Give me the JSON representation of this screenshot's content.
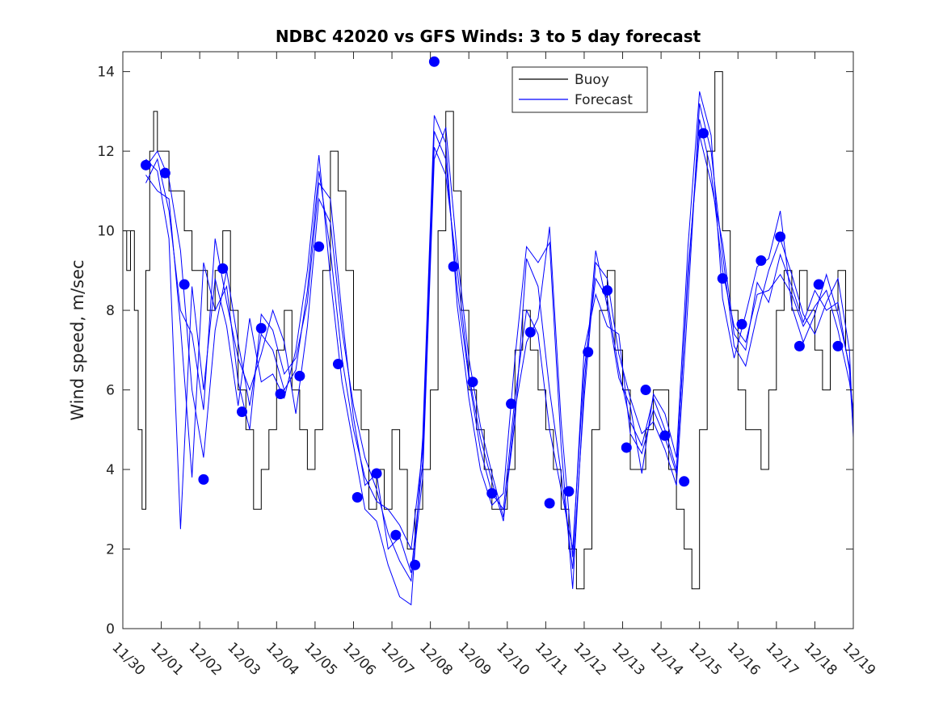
{
  "chart_data": {
    "type": "line",
    "title": "NDBC 42020 vs GFS Winds: 3 to 5 day forecast",
    "xlabel": "",
    "ylabel": "Wind speed, m/sec",
    "xlim": [
      0,
      19
    ],
    "ylim": [
      0,
      14.5
    ],
    "x_tick_labels": [
      "11/30",
      "12/01",
      "12/02",
      "12/03",
      "12/04",
      "12/05",
      "12/06",
      "12/07",
      "12/08",
      "12/09",
      "12/10",
      "12/11",
      "12/12",
      "12/13",
      "12/14",
      "12/15",
      "12/16",
      "12/17",
      "12/18",
      "12/19"
    ],
    "y_ticks": [
      0,
      2,
      4,
      6,
      8,
      10,
      12,
      14
    ],
    "legend": {
      "location": "top-right",
      "entries": [
        {
          "label": "Buoy",
          "color": "#000000"
        },
        {
          "label": "Forecast",
          "color": "#0000ff"
        }
      ]
    },
    "buoy_color": "#000000",
    "forecast_color": "#0000ff",
    "marker_color": "#0000ff",
    "buoy": {
      "name": "Buoy",
      "x": [
        0.0,
        0.1,
        0.2,
        0.3,
        0.4,
        0.5,
        0.6,
        0.7,
        0.8,
        0.9,
        1.0,
        1.2,
        1.4,
        1.6,
        1.8,
        2.0,
        2.2,
        2.4,
        2.6,
        2.8,
        3.0,
        3.2,
        3.4,
        3.6,
        3.8,
        4.0,
        4.2,
        4.4,
        4.6,
        4.8,
        5.0,
        5.2,
        5.4,
        5.6,
        5.8,
        6.0,
        6.2,
        6.4,
        6.6,
        6.8,
        7.0,
        7.2,
        7.4,
        7.6,
        7.8,
        8.0,
        8.2,
        8.4,
        8.6,
        8.8,
        9.0,
        9.2,
        9.4,
        9.6,
        9.8,
        10.0,
        10.2,
        10.4,
        10.6,
        10.8,
        11.0,
        11.2,
        11.4,
        11.6,
        11.8,
        12.0,
        12.2,
        12.4,
        12.6,
        12.8,
        13.0,
        13.2,
        13.4,
        13.6,
        13.8,
        14.0,
        14.2,
        14.4,
        14.6,
        14.8,
        15.0,
        15.2,
        15.4,
        15.6,
        15.8,
        16.0,
        16.2,
        16.4,
        16.6,
        16.8,
        17.0,
        17.2,
        17.4,
        17.6,
        17.8,
        18.0,
        18.2,
        18.4,
        18.6,
        18.8,
        19.0
      ],
      "values": [
        10,
        9,
        10,
        8,
        5,
        3,
        9,
        12,
        13,
        12,
        12,
        11,
        11,
        10,
        9,
        9,
        8,
        9,
        10,
        8,
        6,
        5,
        3,
        4,
        5,
        7,
        8,
        6,
        5,
        4,
        5,
        9,
        12,
        11,
        9,
        6,
        5,
        3,
        4,
        3,
        5,
        4,
        2,
        3,
        4,
        6,
        10,
        13,
        11,
        8,
        6,
        5,
        4,
        3,
        3,
        4,
        7,
        8,
        7,
        6,
        5,
        4,
        3,
        2,
        1,
        2,
        5,
        8,
        9,
        7,
        6,
        4,
        4,
        5,
        6,
        6,
        4,
        3,
        2,
        1,
        5,
        12,
        14,
        10,
        8,
        6,
        5,
        5,
        4,
        6,
        8,
        9,
        8,
        9,
        8,
        7,
        6,
        8,
        9,
        7,
        5
      ]
    },
    "forecast_markers": {
      "name": "Forecast",
      "x": [
        0.6,
        1.1,
        1.6,
        2.1,
        2.6,
        3.1,
        3.6,
        4.1,
        4.6,
        5.1,
        5.6,
        6.1,
        6.6,
        7.1,
        7.6,
        8.1,
        8.6,
        9.1,
        9.6,
        10.1,
        10.6,
        11.1,
        11.6,
        12.1,
        12.6,
        13.1,
        13.6,
        14.1,
        14.6,
        15.1,
        15.6,
        16.1,
        16.6,
        17.1,
        17.6,
        18.1,
        18.6
      ],
      "values": [
        11.65,
        11.45,
        8.65,
        3.75,
        9.05,
        5.45,
        7.55,
        5.9,
        6.35,
        9.6,
        6.65,
        3.3,
        3.9,
        2.35,
        1.6,
        14.25,
        9.1,
        6.2,
        3.4,
        5.65,
        7.45,
        3.15,
        3.45,
        6.95,
        8.5,
        4.55,
        6.0,
        4.85,
        3.7,
        12.45,
        8.8,
        7.65,
        9.25,
        9.85,
        7.1,
        8.65,
        7.1
      ]
    },
    "forecast_series": [
      {
        "name": "Forecast",
        "x": [
          0.6,
          0.9,
          1.2,
          1.5,
          1.8,
          2.1,
          2.4,
          2.7,
          3.0,
          3.3,
          3.6,
          3.9,
          4.2,
          4.5,
          4.8,
          5.1,
          5.4,
          5.7,
          6.0,
          6.3,
          6.6,
          6.9,
          7.2,
          7.5,
          7.8,
          8.1,
          8.4,
          8.7,
          9.0,
          9.3,
          9.6,
          9.9,
          10.2,
          10.5,
          10.8,
          11.1,
          11.4,
          11.7,
          12.0,
          12.3,
          12.6,
          12.9,
          13.2,
          13.5,
          13.8,
          14.1,
          14.4,
          14.7,
          15.0,
          15.3,
          15.6,
          15.9,
          16.2,
          16.5,
          16.8,
          17.1,
          17.4,
          17.7,
          18.0,
          18.3,
          18.6,
          18.9,
          19.0
        ],
        "values": [
          11.6,
          12.0,
          11.3,
          9.5,
          6.0,
          4.3,
          7.5,
          9.0,
          7.2,
          5.6,
          7.4,
          7.0,
          6.0,
          6.5,
          8.5,
          11.5,
          9.5,
          6.8,
          5.0,
          3.8,
          3.2,
          3.0,
          2.6,
          2.0,
          4.5,
          12.5,
          11.8,
          8.5,
          6.3,
          4.5,
          3.4,
          3.0,
          5.8,
          8.0,
          7.4,
          5.0,
          3.5,
          2.0,
          6.5,
          8.8,
          8.3,
          6.5,
          5.2,
          4.6,
          5.8,
          5.0,
          4.0,
          8.8,
          12.8,
          11.5,
          9.0,
          7.6,
          7.2,
          8.4,
          8.5,
          8.9,
          8.4,
          7.6,
          8.1,
          8.5,
          7.5,
          6.2,
          5.5
        ]
      },
      {
        "name": "Forecast",
        "x": [
          0.6,
          0.9,
          1.2,
          1.5,
          1.8,
          2.1,
          2.4,
          2.7,
          3.0,
          3.3,
          3.6,
          3.9,
          4.2,
          4.5,
          4.8,
          5.1,
          5.4,
          5.7,
          6.0,
          6.3,
          6.6,
          6.9,
          7.2,
          7.5,
          7.8,
          8.1,
          8.4,
          8.7,
          9.0,
          9.3,
          9.6,
          9.9,
          10.2,
          10.5,
          10.8,
          11.1,
          11.4,
          11.7,
          12.0,
          12.3,
          12.6,
          12.9,
          13.2,
          13.5,
          13.8,
          14.1,
          14.4,
          14.7,
          15.0,
          15.3,
          15.6,
          15.9,
          16.2,
          16.5,
          16.8,
          17.1,
          17.4,
          17.7,
          18.0,
          18.3,
          18.6,
          18.9,
          19.0
        ],
        "values": [
          11.2,
          11.8,
          10.5,
          8.0,
          7.4,
          5.5,
          9.8,
          8.2,
          6.8,
          6.0,
          6.9,
          8.0,
          7.2,
          5.4,
          7.6,
          10.8,
          10.2,
          7.5,
          5.6,
          4.3,
          3.5,
          2.4,
          1.7,
          1.2,
          3.8,
          11.8,
          12.6,
          9.4,
          6.8,
          5.1,
          3.9,
          2.8,
          5.2,
          9.3,
          8.6,
          6.0,
          3.9,
          1.5,
          5.8,
          9.2,
          8.8,
          6.9,
          5.8,
          4.9,
          5.2,
          4.5,
          3.6,
          8.2,
          13.2,
          12.0,
          9.4,
          7.1,
          6.6,
          7.9,
          9.0,
          9.8,
          8.9,
          7.9,
          7.4,
          8.2,
          8.8,
          7.0,
          4.8
        ]
      },
      {
        "name": "Forecast",
        "x": [
          0.6,
          0.9,
          1.2,
          1.5,
          1.8,
          2.1,
          2.4,
          2.7,
          3.0,
          3.3,
          3.6,
          3.9,
          4.2,
          4.5,
          4.8,
          5.1,
          5.4,
          5.7,
          6.0,
          6.3,
          6.6,
          6.9,
          7.2,
          7.5,
          7.8,
          8.1,
          8.4,
          8.7,
          9.0,
          9.3,
          9.6,
          9.9,
          10.2,
          10.5,
          10.8,
          11.1,
          11.4,
          11.7,
          12.0,
          12.3,
          12.6,
          12.9,
          13.2,
          13.5,
          13.8,
          14.1,
          14.4,
          14.7,
          15.0,
          15.3,
          15.6,
          15.9,
          16.2,
          16.5,
          16.8,
          17.1,
          17.4,
          17.7,
          18.0,
          18.3,
          18.6,
          18.9,
          19.0
        ],
        "values": [
          11.8,
          11.5,
          9.8,
          2.5,
          8.6,
          6.0,
          8.8,
          7.6,
          5.6,
          7.8,
          6.2,
          6.4,
          5.8,
          7.0,
          9.0,
          11.9,
          8.8,
          6.2,
          4.6,
          3.0,
          2.7,
          1.6,
          0.8,
          0.6,
          4.8,
          12.9,
          12.2,
          8.1,
          5.8,
          4.0,
          3.1,
          3.4,
          6.8,
          9.6,
          9.2,
          9.7,
          4.6,
          1.0,
          6.1,
          9.5,
          8.1,
          6.3,
          5.6,
          3.9,
          5.9,
          5.4,
          4.3,
          9.6,
          13.5,
          12.4,
          8.3,
          6.8,
          7.9,
          9.1,
          9.3,
          10.5,
          8.1,
          7.2,
          7.9,
          8.9,
          7.9,
          6.6,
          5.2
        ]
      },
      {
        "name": "Forecast",
        "x": [
          0.6,
          0.9,
          1.2,
          1.5,
          1.8,
          2.1,
          2.4,
          2.7,
          3.0,
          3.3,
          3.6,
          3.9,
          4.2,
          4.5,
          4.8,
          5.1,
          5.4,
          5.7,
          6.0,
          6.3,
          6.6,
          6.9,
          7.2,
          7.5,
          7.8,
          8.1,
          8.4,
          8.7,
          9.0,
          9.3,
          9.6,
          9.9,
          10.2,
          10.5,
          10.8,
          11.1,
          11.4,
          11.7,
          12.0,
          12.3,
          12.6,
          12.9,
          13.2,
          13.5,
          13.8,
          14.1,
          14.4,
          14.7,
          15.0,
          15.3,
          15.6,
          15.9,
          16.2,
          16.5,
          16.8,
          17.1,
          17.4,
          17.7,
          18.0,
          18.3,
          18.6,
          18.9,
          19.0
        ],
        "values": [
          11.4,
          11.0,
          10.8,
          7.6,
          3.8,
          9.2,
          8.0,
          8.6,
          6.2,
          5.0,
          7.9,
          7.5,
          6.4,
          6.8,
          8.2,
          11.2,
          10.8,
          7.9,
          5.3,
          3.6,
          3.9,
          2.0,
          2.3,
          1.4,
          4.2,
          12.1,
          11.4,
          9.0,
          6.4,
          4.8,
          3.7,
          2.7,
          5.5,
          7.2,
          7.8,
          10.1,
          5.2,
          1.8,
          7.0,
          8.4,
          7.6,
          7.4,
          4.9,
          4.4,
          5.5,
          4.8,
          3.9,
          9.0,
          12.4,
          11.2,
          9.7,
          7.4,
          7.0,
          8.7,
          8.2,
          9.4,
          8.6,
          7.7,
          8.5,
          8.0,
          8.2,
          6.5,
          4.9
        ]
      }
    ]
  }
}
